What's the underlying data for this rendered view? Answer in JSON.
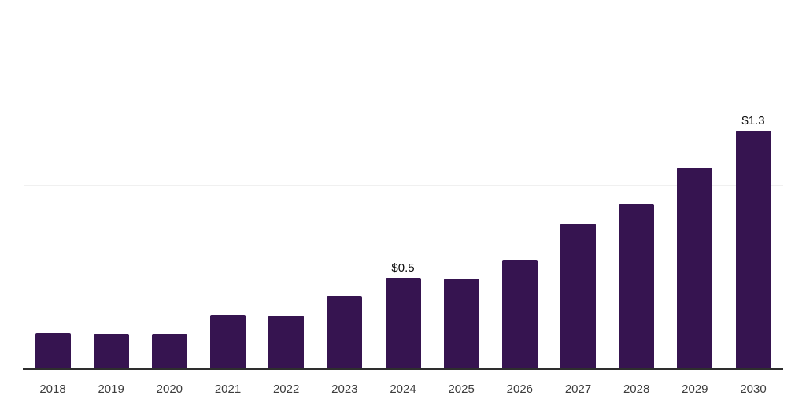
{
  "chart": {
    "bar_color": "#361450",
    "axis_line_color": "#2e2e2e",
    "gridline_color": "#f0f0f0",
    "x_label_color": "#3d3d3d",
    "value_label_color": "#0b0b0b"
  },
  "chart_data": {
    "type": "bar",
    "title": "",
    "xlabel": "",
    "ylabel": "",
    "categories": [
      "2018",
      "2019",
      "2020",
      "2021",
      "2022",
      "2023",
      "2024",
      "2025",
      "2026",
      "2027",
      "2028",
      "2029",
      "2030"
    ],
    "values": [
      0.2,
      0.195,
      0.195,
      0.3,
      0.295,
      0.4,
      0.5,
      0.495,
      0.6,
      0.795,
      0.9,
      1.1,
      1.3
    ],
    "bar_labels": [
      "",
      "",
      "",
      "",
      "",
      "",
      "$0.5",
      "",
      "",
      "",
      "",
      "",
      "$1.3"
    ],
    "ylim": [
      0,
      2.0
    ],
    "gridlines_y": [
      1.0,
      2.0
    ],
    "grid": "horizontal-only",
    "legend": "none",
    "series_color": "#361450"
  }
}
